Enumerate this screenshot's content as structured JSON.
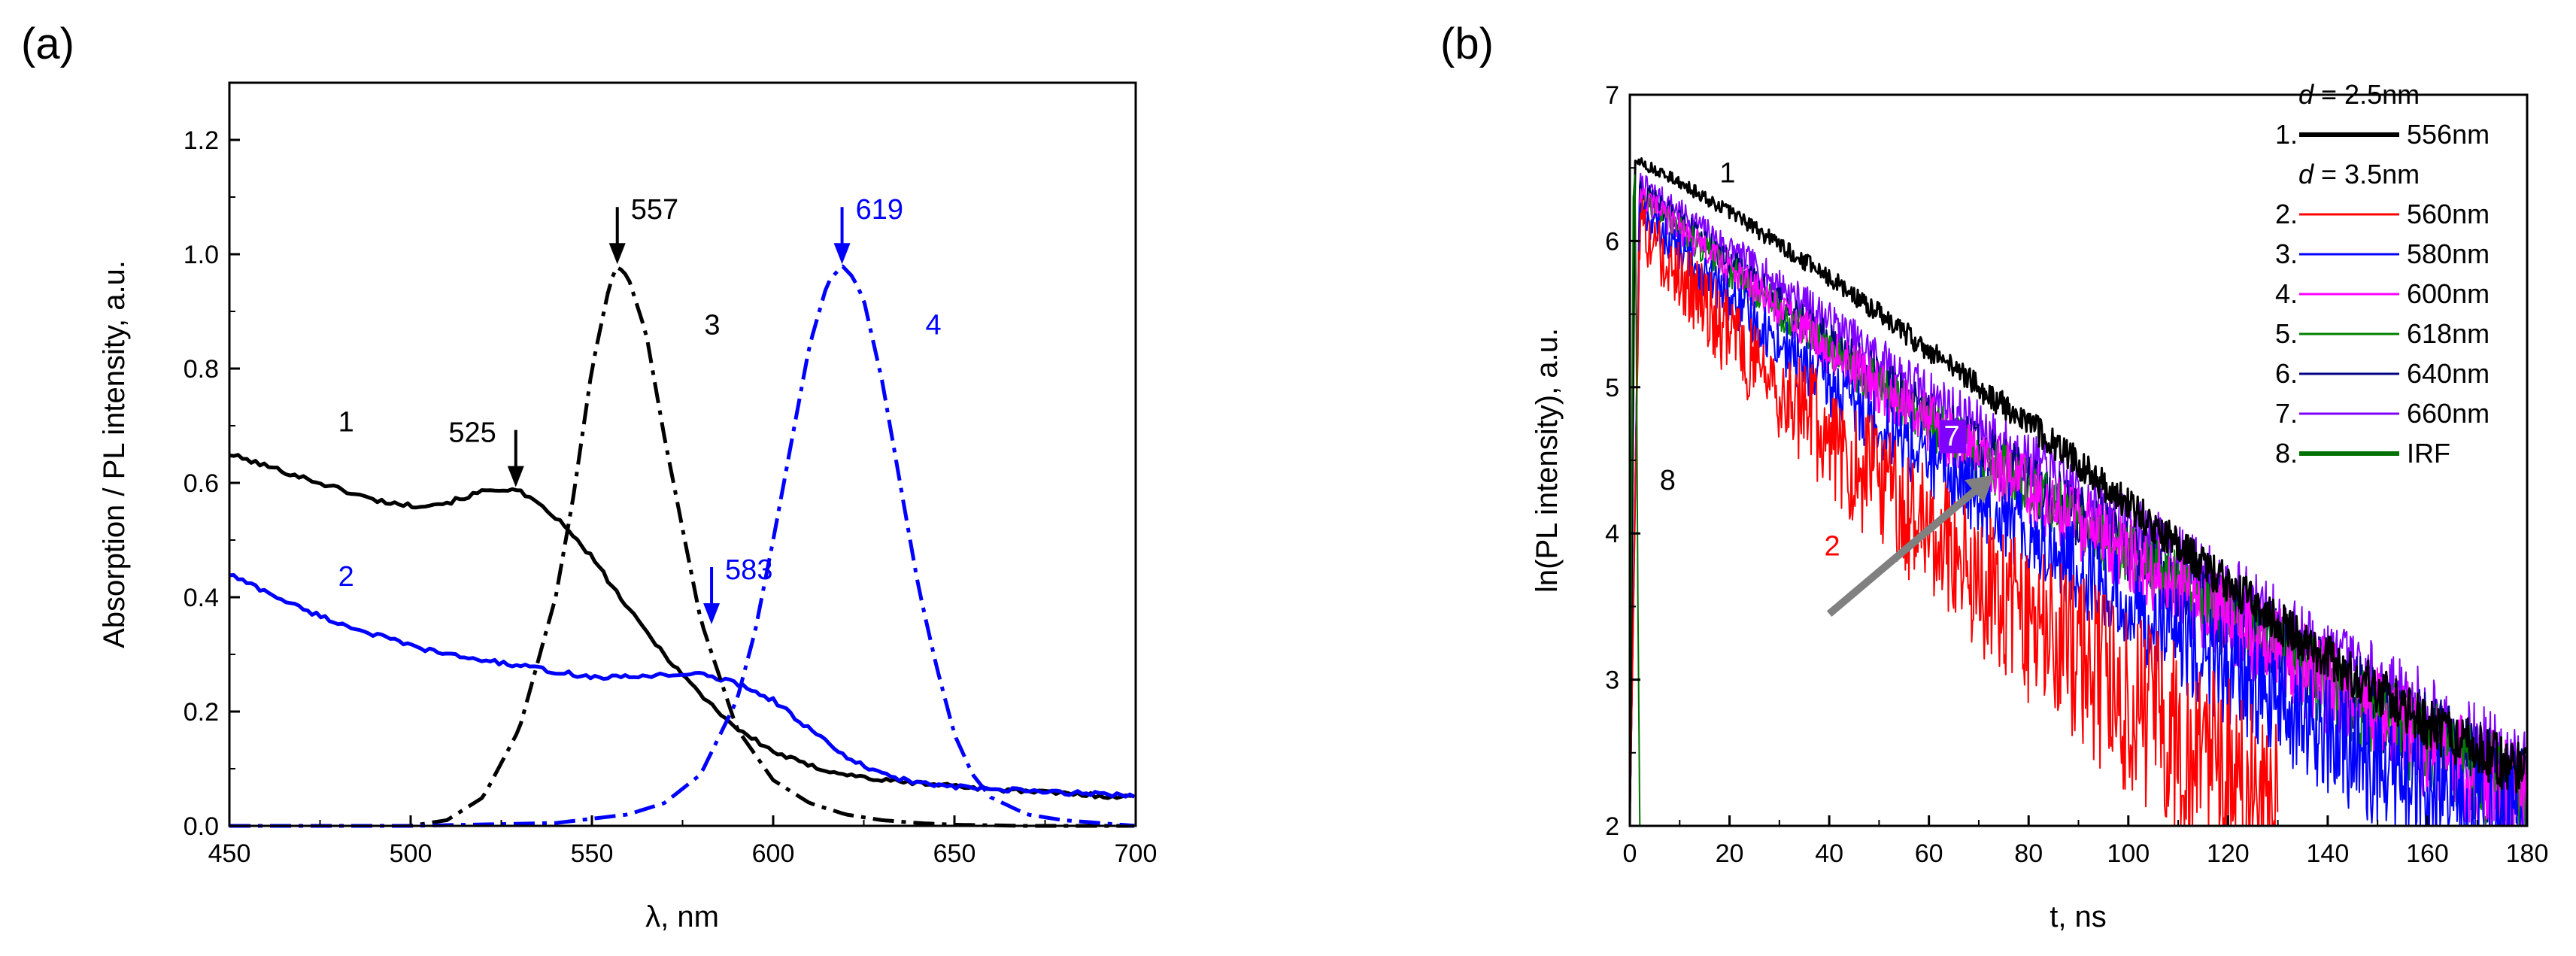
{
  "chart_data": [
    {
      "panel": "(a)",
      "type": "line",
      "xlabel": "λ, nm",
      "ylabel": "Absorption / PL intensity, a.u.",
      "xlim": [
        450,
        700
      ],
      "ylim": [
        0,
        1.3
      ],
      "xticks": [
        450,
        500,
        550,
        600,
        650,
        700
      ],
      "yticks": [
        0.0,
        0.2,
        0.4,
        0.6,
        0.8,
        1.0,
        1.2
      ],
      "grid": false,
      "series": [
        {
          "label": "1",
          "color": "#000000",
          "style": "solid",
          "x": [
            450,
            460,
            470,
            480,
            490,
            500,
            510,
            520,
            525,
            530,
            540,
            550,
            560,
            570,
            580,
            590,
            600,
            610,
            620,
            630,
            640,
            650,
            660,
            670,
            680,
            690,
            700
          ],
          "y": [
            0.65,
            0.63,
            0.61,
            0.59,
            0.57,
            0.56,
            0.565,
            0.585,
            0.59,
            0.585,
            0.54,
            0.47,
            0.38,
            0.3,
            0.23,
            0.17,
            0.13,
            0.105,
            0.09,
            0.08,
            0.075,
            0.07,
            0.065,
            0.06,
            0.057,
            0.053,
            0.05
          ]
        },
        {
          "label": "2",
          "color": "#0000ff",
          "style": "solid",
          "x": [
            450,
            460,
            470,
            480,
            490,
            500,
            510,
            520,
            530,
            540,
            550,
            560,
            570,
            580,
            590,
            600,
            610,
            620,
            630,
            640,
            650,
            660,
            670,
            680,
            690,
            700
          ],
          "y": [
            0.44,
            0.41,
            0.38,
            0.355,
            0.335,
            0.315,
            0.3,
            0.29,
            0.28,
            0.27,
            0.26,
            0.26,
            0.265,
            0.265,
            0.25,
            0.22,
            0.17,
            0.12,
            0.09,
            0.075,
            0.068,
            0.064,
            0.061,
            0.058,
            0.056,
            0.054
          ]
        },
        {
          "label": "3",
          "color": "#000000",
          "style": "dashdot",
          "x": [
            450,
            500,
            510,
            520,
            530,
            540,
            545,
            550,
            555,
            557,
            560,
            565,
            570,
            580,
            590,
            600,
            610,
            620,
            630,
            640,
            650,
            660,
            670,
            680,
            690,
            700
          ],
          "y": [
            0.0,
            0.0,
            0.01,
            0.05,
            0.17,
            0.4,
            0.58,
            0.8,
            0.95,
            0.98,
            0.96,
            0.86,
            0.68,
            0.36,
            0.17,
            0.08,
            0.04,
            0.02,
            0.01,
            0.005,
            0.002,
            0.001,
            0.0,
            0.0,
            0.0,
            0.0
          ]
        },
        {
          "label": "4",
          "color": "#0000ff",
          "style": "dashdot",
          "x": [
            450,
            500,
            540,
            560,
            570,
            580,
            590,
            595,
            600,
            605,
            610,
            615,
            619,
            622,
            625,
            630,
            635,
            640,
            645,
            650,
            655,
            660,
            670,
            680,
            690,
            700
          ],
          "y": [
            0.0,
            0.0,
            0.005,
            0.02,
            0.04,
            0.09,
            0.22,
            0.34,
            0.5,
            0.67,
            0.84,
            0.95,
            0.98,
            0.96,
            0.92,
            0.78,
            0.6,
            0.42,
            0.28,
            0.16,
            0.09,
            0.05,
            0.02,
            0.01,
            0.005,
            0.0
          ]
        }
      ],
      "annotations": [
        {
          "text": "557",
          "x": 557,
          "y": 0.98,
          "color": "#000000",
          "arrow": true
        },
        {
          "text": "619",
          "x": 619,
          "y": 0.98,
          "color": "#0000ff",
          "arrow": true
        },
        {
          "text": "525",
          "x": 529,
          "y": 0.59,
          "color": "#000000",
          "arrow": true
        },
        {
          "text": "583",
          "x": 583,
          "y": 0.35,
          "color": "#0000ff",
          "arrow": true
        },
        {
          "text": "1",
          "x": 480,
          "y": 0.69,
          "color": "#000000",
          "arrow": false
        },
        {
          "text": "2",
          "x": 480,
          "y": 0.42,
          "color": "#0000ff",
          "arrow": false
        },
        {
          "text": "3",
          "x": 581,
          "y": 0.86,
          "color": "#000000",
          "arrow": false
        },
        {
          "text": "4",
          "x": 642,
          "y": 0.86,
          "color": "#0000ff",
          "arrow": false
        }
      ]
    },
    {
      "panel": "(b)",
      "type": "line",
      "xlabel": "t, ns",
      "ylabel": "ln(PL intensity), a.u.",
      "xlim": [
        0,
        180
      ],
      "ylim": [
        2,
        7
      ],
      "xticks": [
        0,
        20,
        40,
        60,
        80,
        100,
        120,
        140,
        160,
        180
      ],
      "yticks": [
        2,
        3,
        4,
        5,
        6,
        7
      ],
      "grid": false,
      "legend_position": "top-right",
      "legend_groups": [
        {
          "header_var": "d",
          "header_value": " = 2.5nm",
          "items": [
            {
              "num": "1.",
              "label": "556nm",
              "color": "#000000"
            }
          ]
        },
        {
          "header_var": "d",
          "header_value": " = 3.5nm",
          "items": [
            {
              "num": "2.",
              "label": "560nm",
              "color": "#ff0000"
            },
            {
              "num": "3.",
              "label": "580nm",
              "color": "#0000ff"
            },
            {
              "num": "4.",
              "label": "600nm",
              "color": "#ff00ff"
            },
            {
              "num": "5.",
              "label": "618nm",
              "color": "#008000"
            },
            {
              "num": "6.",
              "label": "640nm",
              "color": "#000080"
            },
            {
              "num": "7.",
              "label": "660nm",
              "color": "#8000ff"
            },
            {
              "num": "8.",
              "label": "IRF",
              "color": "#007000"
            }
          ]
        }
      ],
      "series": [
        {
          "label": "7",
          "color": "#8000ff",
          "x": [
            0,
            2,
            20,
            40,
            60,
            80,
            100,
            120,
            140,
            160,
            180
          ],
          "y": [
            2,
            6.4,
            5.95,
            5.45,
            4.95,
            4.5,
            4.05,
            3.6,
            3.15,
            2.75,
            2.3
          ],
          "noise": 0.07
        },
        {
          "label": "6",
          "color": "#000080",
          "x": [
            0,
            2,
            20,
            40,
            60,
            80,
            100,
            120,
            140,
            160,
            180
          ],
          "y": [
            2,
            6.35,
            5.85,
            5.3,
            4.8,
            4.35,
            3.9,
            3.45,
            3.0,
            2.6,
            2.2
          ],
          "noise": 0.07
        },
        {
          "label": "5",
          "color": "#008000",
          "x": [
            0,
            2,
            20,
            40,
            60,
            80,
            100,
            120,
            140,
            160,
            180
          ],
          "y": [
            2,
            6.3,
            5.8,
            5.25,
            4.75,
            4.3,
            3.85,
            3.4,
            2.95,
            2.55,
            2.15
          ],
          "noise": 0.07
        },
        {
          "label": "4",
          "color": "#ff00ff",
          "x": [
            0,
            2,
            20,
            40,
            60,
            80,
            100,
            120,
            140,
            160,
            180
          ],
          "y": [
            2,
            6.3,
            5.8,
            5.25,
            4.75,
            4.3,
            3.85,
            3.4,
            2.95,
            2.55,
            2.15
          ],
          "noise": 0.08
        },
        {
          "label": "3",
          "color": "#0000ff",
          "x": [
            0,
            2,
            20,
            40,
            60,
            80,
            100,
            120,
            140,
            160,
            180
          ],
          "y": [
            2,
            6.2,
            5.6,
            5.0,
            4.5,
            4.0,
            3.5,
            3.05,
            2.6,
            2.2,
            2.0
          ],
          "noise": 0.09
        },
        {
          "label": "2",
          "color": "#ff0000",
          "x": [
            0,
            2,
            20,
            40,
            60,
            80,
            100,
            120,
            130
          ],
          "y": [
            2,
            6.1,
            5.35,
            4.65,
            4.0,
            3.4,
            2.85,
            2.3,
            2.0
          ],
          "noise": 0.15
        },
        {
          "label": "1",
          "color": "#000000",
          "x": [
            0,
            1,
            10,
            20,
            40,
            60,
            80,
            100,
            120,
            140,
            160,
            180
          ],
          "y": [
            2,
            6.55,
            6.4,
            6.2,
            5.75,
            5.25,
            4.75,
            4.2,
            3.65,
            3.15,
            2.7,
            2.35
          ],
          "noise": 0.04
        },
        {
          "label": "8",
          "color": "#007000",
          "x": [
            0,
            0.3,
            0.7,
            1.0,
            1.3,
            1.6,
            2.0
          ],
          "y": [
            2,
            4.0,
            6.3,
            6.45,
            5.4,
            3.6,
            2
          ],
          "noise": 0
        }
      ],
      "annotations": [
        {
          "text": "1",
          "x": 18,
          "y": 6.4,
          "color": "#000000"
        },
        {
          "text": "2",
          "x": 39,
          "y": 3.85,
          "color": "#ff0000"
        },
        {
          "text": "7",
          "x": 63,
          "y": 4.6,
          "color": "#ffffff"
        },
        {
          "text": "8",
          "x": 6,
          "y": 4.3,
          "color": "#000000"
        }
      ],
      "trend_arrow": {
        "from": [
          40,
          3.45
        ],
        "to": [
          73,
          4.4
        ],
        "color": "#808080"
      }
    }
  ]
}
